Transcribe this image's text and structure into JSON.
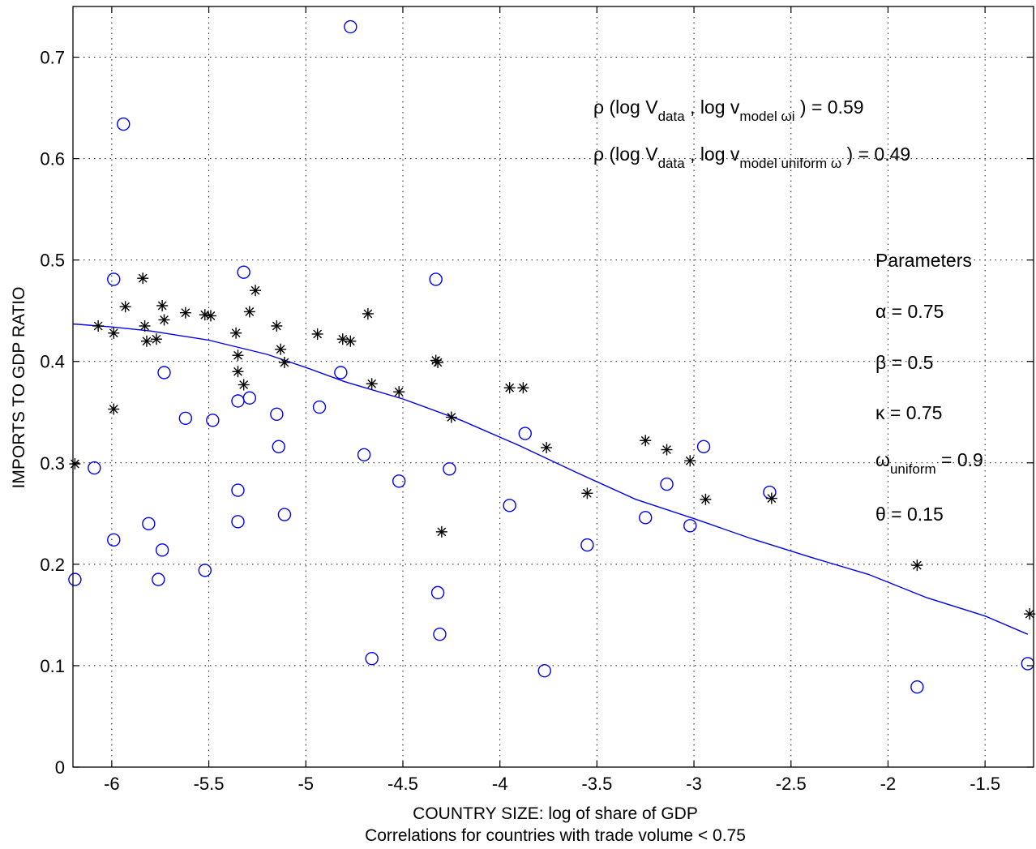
{
  "chart_data": {
    "type": "scatter",
    "title": "",
    "xlabel": "COUNTRY SIZE: log of share of GDP",
    "xlabel2": "Correlations for countries with trade volume < 0.75",
    "ylabel": "IMPORTS TO GDP RATIO",
    "xlim": [
      -6.2,
      -1.25
    ],
    "ylim": [
      0,
      0.75
    ],
    "grid": true,
    "x_ticks": [
      -6,
      -5.5,
      -5,
      -4.5,
      -4,
      -3.5,
      -3,
      -2.5,
      -2,
      -1.5
    ],
    "x_tick_labels": [
      "-6",
      "-5.5",
      "-5",
      "-4.5",
      "-4",
      "-3.5",
      "-3",
      "-2.5",
      "-2",
      "-1.5"
    ],
    "y_ticks": [
      0,
      0.1,
      0.2,
      0.3,
      0.4,
      0.5,
      0.6,
      0.7
    ],
    "y_tick_labels": [
      "0",
      "0.1",
      "0.2",
      "0.3",
      "0.4",
      "0.5",
      "0.6",
      "0.7"
    ],
    "series": [
      {
        "marker": "circle",
        "color": "#0000ee",
        "points": [
          [
            -4.77,
            0.73
          ],
          [
            -5.94,
            0.634
          ],
          [
            -5.32,
            0.488
          ],
          [
            -5.99,
            0.481
          ],
          [
            -4.33,
            0.481
          ],
          [
            -5.73,
            0.389
          ],
          [
            -4.82,
            0.389
          ],
          [
            -5.29,
            0.364
          ],
          [
            -5.35,
            0.361
          ],
          [
            -4.93,
            0.355
          ],
          [
            -5.15,
            0.348
          ],
          [
            -5.62,
            0.344
          ],
          [
            -5.48,
            0.342
          ],
          [
            -3.87,
            0.329
          ],
          [
            -5.14,
            0.316
          ],
          [
            -2.95,
            0.316
          ],
          [
            -4.7,
            0.308
          ],
          [
            -6.09,
            0.295
          ],
          [
            -4.26,
            0.294
          ],
          [
            -4.52,
            0.282
          ],
          [
            -3.14,
            0.279
          ],
          [
            -5.35,
            0.273
          ],
          [
            -2.61,
            0.271
          ],
          [
            -3.95,
            0.258
          ],
          [
            -5.11,
            0.249
          ],
          [
            -3.25,
            0.246
          ],
          [
            -5.35,
            0.242
          ],
          [
            -5.81,
            0.24
          ],
          [
            -3.02,
            0.238
          ],
          [
            -5.99,
            0.224
          ],
          [
            -3.55,
            0.219
          ],
          [
            -5.74,
            0.214
          ],
          [
            -5.52,
            0.194
          ],
          [
            -6.19,
            0.185
          ],
          [
            -5.76,
            0.185
          ],
          [
            -4.32,
            0.172
          ],
          [
            -4.31,
            0.131
          ],
          [
            -4.66,
            0.107
          ],
          [
            -1.28,
            0.102
          ],
          [
            -3.77,
            0.095
          ],
          [
            -1.85,
            0.079
          ]
        ]
      },
      {
        "marker": "asterisk",
        "color": "#000000",
        "points": [
          [
            -5.84,
            0.482
          ],
          [
            -5.26,
            0.47
          ],
          [
            -5.74,
            0.455
          ],
          [
            -5.93,
            0.454
          ],
          [
            -5.29,
            0.449
          ],
          [
            -5.62,
            0.448
          ],
          [
            -4.68,
            0.447
          ],
          [
            -5.52,
            0.446
          ],
          [
            -5.49,
            0.445
          ],
          [
            -5.73,
            0.441
          ],
          [
            -6.07,
            0.435
          ],
          [
            -5.83,
            0.435
          ],
          [
            -5.15,
            0.435
          ],
          [
            -5.99,
            0.428
          ],
          [
            -5.36,
            0.428
          ],
          [
            -4.94,
            0.427
          ],
          [
            -4.81,
            0.422
          ],
          [
            -5.77,
            0.422
          ],
          [
            -5.82,
            0.42
          ],
          [
            -4.77,
            0.42
          ],
          [
            -5.13,
            0.412
          ],
          [
            -5.35,
            0.406
          ],
          [
            -4.33,
            0.401
          ],
          [
            -4.32,
            0.399
          ],
          [
            -5.11,
            0.399
          ],
          [
            -5.35,
            0.39
          ],
          [
            -5.32,
            0.377
          ],
          [
            -4.66,
            0.378
          ],
          [
            -3.95,
            0.374
          ],
          [
            -3.88,
            0.374
          ],
          [
            -4.52,
            0.37
          ],
          [
            -5.99,
            0.353
          ],
          [
            -4.25,
            0.345
          ],
          [
            -3.25,
            0.322
          ],
          [
            -3.76,
            0.315
          ],
          [
            -3.14,
            0.313
          ],
          [
            -3.02,
            0.302
          ],
          [
            -6.19,
            0.299
          ],
          [
            -3.55,
            0.27
          ],
          [
            -2.94,
            0.264
          ],
          [
            -2.6,
            0.265
          ],
          [
            -4.3,
            0.232
          ],
          [
            -1.85,
            0.199
          ],
          [
            -1.27,
            0.151
          ]
        ]
      },
      {
        "marker": "line",
        "color": "#0000ee",
        "points": [
          [
            -6.2,
            0.437
          ],
          [
            -6.0,
            0.434
          ],
          [
            -5.8,
            0.43
          ],
          [
            -5.5,
            0.421
          ],
          [
            -5.2,
            0.407
          ],
          [
            -5.0,
            0.394
          ],
          [
            -4.8,
            0.38
          ],
          [
            -4.5,
            0.363
          ],
          [
            -4.2,
            0.342
          ],
          [
            -3.9,
            0.317
          ],
          [
            -3.6,
            0.29
          ],
          [
            -3.3,
            0.264
          ],
          [
            -3.0,
            0.245
          ],
          [
            -2.7,
            0.225
          ],
          [
            -2.4,
            0.207
          ],
          [
            -2.1,
            0.19
          ],
          [
            -1.8,
            0.167
          ],
          [
            -1.5,
            0.149
          ],
          [
            -1.28,
            0.131
          ]
        ]
      }
    ],
    "annotations": {
      "rho1": {
        "pre": "ρ (log V",
        "sub1": "data",
        "mid": " , log v",
        "sub2": "model ωi",
        "post": " ) = 0.59"
      },
      "rho2": {
        "pre": "ρ (log V",
        "sub1": "data",
        "mid": " , log v",
        "sub2": "model uniform ω",
        "post": " ) = 0.49"
      },
      "params_title": "Parameters",
      "alpha": "α = 0.75",
      "beta": "β = 0.5",
      "kappa": "κ = 0.75",
      "omega": {
        "pre": "ω",
        "sub": "uniform",
        "post": " = 0.9"
      },
      "theta": "θ = 0.15"
    }
  }
}
